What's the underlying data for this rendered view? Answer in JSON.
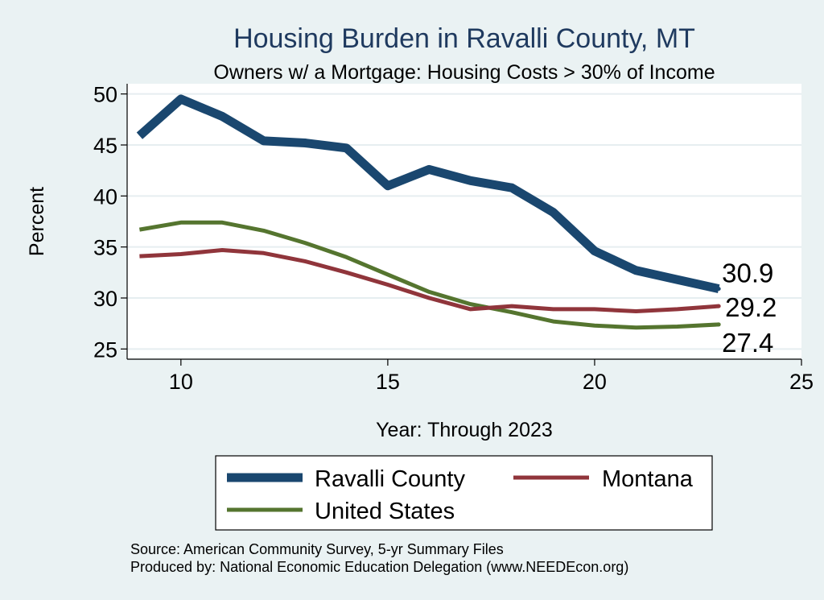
{
  "chart_data": {
    "type": "line",
    "title": "Housing Burden in Ravalli County, MT",
    "subtitle": "Owners w/ a Mortgage: Housing Costs > 30% of Income",
    "xlabel": "Year: Through 2023",
    "ylabel": "Percent",
    "xlim": [
      8.7,
      25
    ],
    "ylim": [
      24,
      51
    ],
    "xticks": [
      10,
      15,
      20,
      25
    ],
    "yticks": [
      25,
      30,
      35,
      40,
      45,
      50
    ],
    "grid": true,
    "x": [
      9,
      10,
      11,
      12,
      13,
      14,
      15,
      16,
      17,
      18,
      19,
      20,
      21,
      22,
      23
    ],
    "series": [
      {
        "name": "Ravalli County",
        "color": "#1a476f",
        "values": [
          45.9,
          49.5,
          47.8,
          45.4,
          45.2,
          44.7,
          41.0,
          42.6,
          41.5,
          40.8,
          38.4,
          34.6,
          32.7,
          31.8,
          30.9
        ],
        "end_label": "30.9"
      },
      {
        "name": "Montana",
        "color": "#90353b",
        "values": [
          34.1,
          34.3,
          34.7,
          34.4,
          33.6,
          32.5,
          31.3,
          30.0,
          28.9,
          29.2,
          28.9,
          28.9,
          28.7,
          28.9,
          29.2
        ],
        "end_label": "29.2"
      },
      {
        "name": "United States",
        "color": "#55752f",
        "values": [
          36.7,
          37.4,
          37.4,
          36.6,
          35.4,
          34.0,
          32.3,
          30.6,
          29.4,
          28.6,
          27.7,
          27.3,
          27.1,
          27.2,
          27.4
        ],
        "end_label": "27.4"
      }
    ],
    "legend": {
      "placement": "bottom",
      "entries": [
        "Ravalli County",
        "Montana",
        "United States"
      ]
    },
    "notes": [
      "Source: American Community Survey, 5-yr Summary Files",
      "Produced by: National Economic Education Delegation (www.NEEDEcon.org)"
    ]
  }
}
